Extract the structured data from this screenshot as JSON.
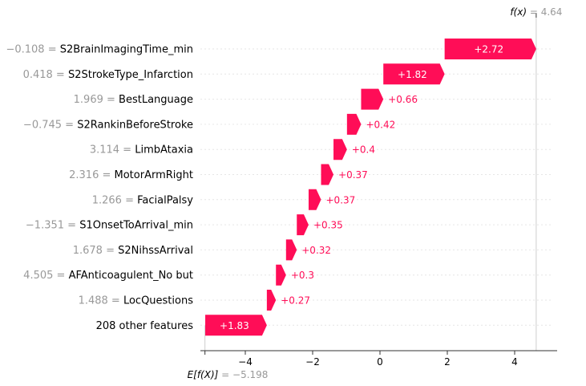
{
  "chart_data": {
    "type": "waterfall",
    "fx_label": "f(x)",
    "fx_eq": " = 4.64",
    "fx_value": 4.64,
    "ex_label": "E[f(X)]",
    "ex_eq": " = −5.198",
    "ex_value": -5.198,
    "xlim": [
      -5.2,
      5.2
    ],
    "ticks": [
      -4,
      -2,
      0,
      2,
      4
    ],
    "tick_labels": [
      "−4",
      "−2",
      "0",
      "2",
      "4"
    ],
    "colors": {
      "positive": "#ff0d57",
      "value_text": "#999999",
      "axis": "#333333"
    },
    "rows": [
      {
        "value": "−0.108",
        "feature": "S2BrainImagingTime_min",
        "start": 1.92,
        "end": 4.64,
        "label": "+2.72"
      },
      {
        "value": "0.418",
        "feature": "S2StrokeType_Infarction",
        "start": 0.1,
        "end": 1.92,
        "label": "+1.82"
      },
      {
        "value": "1.969",
        "feature": "BestLanguage",
        "start": -0.56,
        "end": 0.1,
        "label": "+0.66"
      },
      {
        "value": "−0.745",
        "feature": "S2RankinBeforeStroke",
        "start": -0.98,
        "end": -0.56,
        "label": "+0.42"
      },
      {
        "value": "3.114",
        "feature": "LimbAtaxia",
        "start": -1.38,
        "end": -0.98,
        "label": "+0.4"
      },
      {
        "value": "2.316",
        "feature": "MotorArmRight",
        "start": -1.75,
        "end": -1.38,
        "label": "+0.37"
      },
      {
        "value": "1.266",
        "feature": "FacialPalsy",
        "start": -2.12,
        "end": -1.75,
        "label": "+0.37"
      },
      {
        "value": "−1.351",
        "feature": "S1OnsetToArrival_min",
        "start": -2.47,
        "end": -2.12,
        "label": "+0.35"
      },
      {
        "value": "1.678",
        "feature": "S2NihssArrival",
        "start": -2.79,
        "end": -2.47,
        "label": "+0.32"
      },
      {
        "value": "4.505",
        "feature": "AFAnticoagulent_No but",
        "start": -3.09,
        "end": -2.79,
        "label": "+0.3"
      },
      {
        "value": "1.488",
        "feature": "LocQuestions",
        "start": -3.36,
        "end": -3.09,
        "label": "+0.27"
      },
      {
        "value": "",
        "feature": "208 other features",
        "start": -5.19,
        "end": -3.36,
        "label": "+1.83"
      }
    ]
  }
}
